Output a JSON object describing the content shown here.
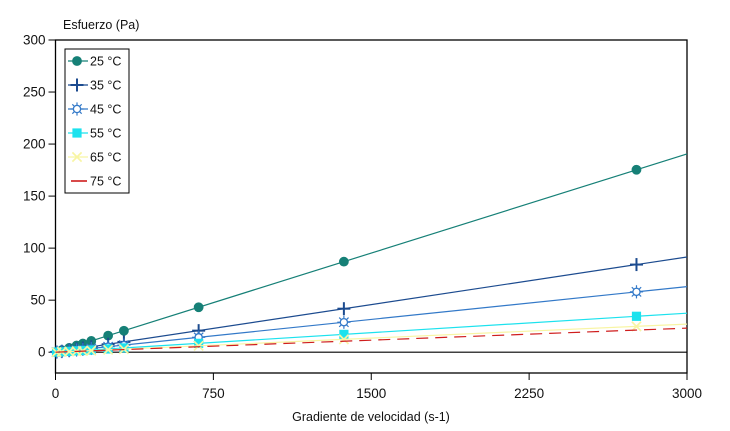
{
  "window": {
    "background": "#ffffff"
  },
  "chart_data": {
    "type": "scatter",
    "title": "",
    "ylabel": "Esfuerzo (Pa)",
    "xlabel": "Gradiente de velocidad (s-1)",
    "xlim": [
      0,
      3000
    ],
    "ylim": [
      -20,
      300
    ],
    "xticks": [
      0,
      750,
      1500,
      2250,
      3000
    ],
    "yticks": [
      0,
      50,
      100,
      150,
      200,
      250,
      300
    ],
    "grid": false,
    "legend_position": "top-left-inside",
    "frame_color": "#000000",
    "x": [
      5,
      30,
      65,
      100,
      130,
      170,
      250,
      325,
      680,
      1370,
      2760
    ],
    "series": [
      {
        "name": "25 °C",
        "marker": "filled-circle",
        "color": "#168077",
        "slope_pa_s": 0.0635,
        "dashed": false,
        "y": [
          0.3,
          1.9,
          4.1,
          6.4,
          8.3,
          10.8,
          15.9,
          20.6,
          43.2,
          87.0,
          175.3
        ]
      },
      {
        "name": "35 °C",
        "marker": "plus",
        "color": "#1c4b8f",
        "slope_pa_s": 0.0305,
        "dashed": false,
        "y": [
          0.2,
          0.9,
          2.0,
          3.1,
          4.0,
          5.2,
          7.6,
          9.9,
          20.7,
          41.8,
          84.2
        ]
      },
      {
        "name": "45 °C",
        "marker": "open-sun",
        "color": "#3379c8",
        "slope_pa_s": 0.021,
        "dashed": false,
        "y": [
          0.1,
          0.6,
          1.4,
          2.1,
          2.7,
          3.6,
          5.3,
          6.8,
          14.3,
          28.8,
          58.0
        ]
      },
      {
        "name": "55 °C",
        "marker": "filled-square",
        "color": "#1ce2ee",
        "slope_pa_s": 0.0125,
        "dashed": false,
        "y": [
          0.1,
          0.4,
          0.8,
          1.3,
          1.6,
          2.1,
          3.1,
          4.1,
          8.5,
          17.1,
          34.5
        ]
      },
      {
        "name": "65 °C",
        "marker": "x-cross",
        "color": "#f8f5a4",
        "slope_pa_s": 0.009,
        "dashed": false,
        "y": [
          0.0,
          0.3,
          0.6,
          0.9,
          1.2,
          1.5,
          2.3,
          2.9,
          6.1,
          12.3,
          24.8
        ]
      },
      {
        "name": "75 °C",
        "marker": "none-dash",
        "color": "#cf1d1d",
        "slope_pa_s": 0.0077,
        "dashed": true,
        "y": [
          0.0,
          0.2,
          0.5,
          0.8,
          1.0,
          1.3,
          1.9,
          2.5,
          5.2,
          10.5,
          21.3
        ]
      }
    ]
  }
}
